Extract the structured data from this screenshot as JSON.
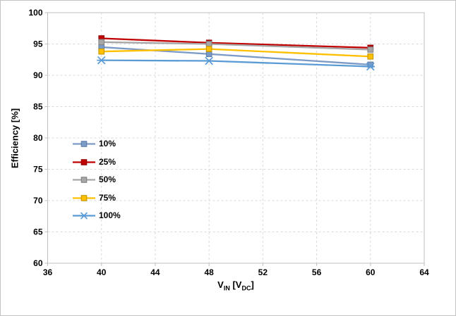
{
  "figure": {
    "background": "#FFFFFF",
    "border_color": "#C3C3C3"
  },
  "chart_data": {
    "type": "line",
    "title": "",
    "xlabel": "VIN [VDC]",
    "xlabel_parts": {
      "base1": "V",
      "sub1": "IN",
      "base2": " [V",
      "sub2": "DC",
      "base3": "]"
    },
    "ylabel": "Efficiency [%]",
    "xlim": [
      36,
      64
    ],
    "ylim": [
      60,
      100
    ],
    "x_ticks": [
      36,
      40,
      44,
      48,
      52,
      56,
      60,
      64
    ],
    "y_ticks": [
      60,
      65,
      70,
      75,
      80,
      85,
      90,
      95,
      100
    ],
    "grid": true,
    "legend_position": "middle-left",
    "x": [
      40,
      48,
      60
    ],
    "series": [
      {
        "name": "10%",
        "color": "#7C9AC6",
        "edge": "#5C7BA6",
        "marker": "square",
        "values": [
          94.5,
          93.4,
          91.7
        ]
      },
      {
        "name": "25%",
        "color": "#C00000",
        "edge": "#900000",
        "marker": "square",
        "values": [
          95.9,
          95.2,
          94.4
        ]
      },
      {
        "name": "50%",
        "color": "#A6A6A6",
        "edge": "#7F7F7F",
        "marker": "square",
        "values": [
          95.3,
          95.0,
          94.1
        ]
      },
      {
        "name": "75%",
        "color": "#FFC000",
        "edge": "#BF9000",
        "marker": "square",
        "values": [
          93.8,
          94.2,
          93.0
        ]
      },
      {
        "name": "100%",
        "color": "#5B9BD5",
        "edge": "#41719C",
        "marker": "x-star",
        "values": [
          92.4,
          92.3,
          91.4
        ]
      }
    ],
    "colors": {
      "gridline": "#D9D9D9",
      "axis": "#BFBFBF",
      "tick_label": "#000000",
      "plot_background": "#FFFFFF"
    }
  }
}
